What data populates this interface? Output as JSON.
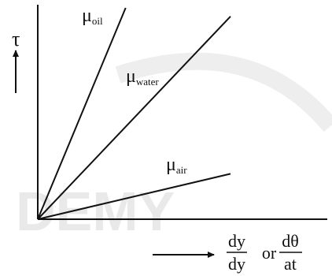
{
  "chart_data": {
    "type": "line",
    "title": "",
    "xlabel": {
      "prefix_num": "dy",
      "prefix_den": "dy",
      "connector": "or",
      "suffix_num": "dθ",
      "suffix_den": "at"
    },
    "ylabel": "τ",
    "grid": false,
    "legend": "none",
    "series": [
      {
        "symbol": "μ",
        "subscript": "oil",
        "slope": 2.4
      },
      {
        "symbol": "μ",
        "subscript": "water",
        "slope": 1.05
      },
      {
        "symbol": "μ",
        "subscript": "air",
        "slope": 0.235
      }
    ],
    "xlim": [
      0,
      1
    ],
    "ylim": [
      0,
      1
    ]
  },
  "watermark": "DEMY",
  "colors": {
    "line": "#111111",
    "watermark": "#e9e9e9"
  }
}
